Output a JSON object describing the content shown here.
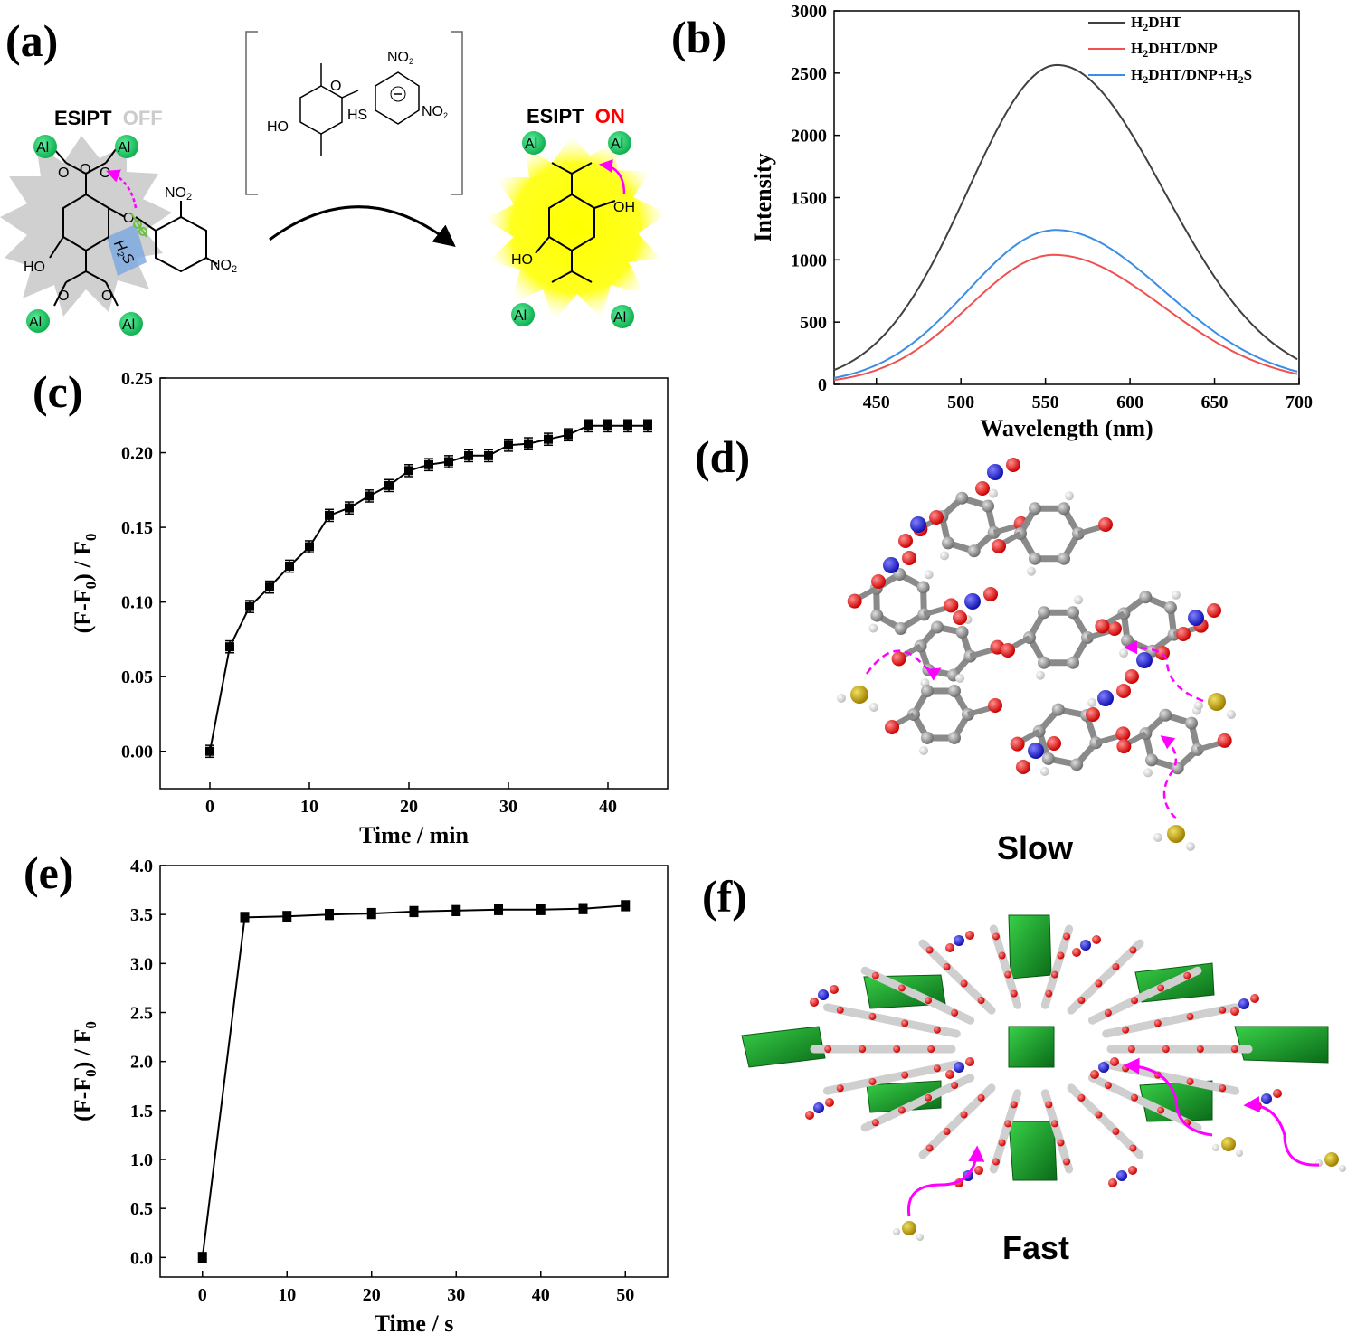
{
  "panels": {
    "a": {
      "label": "(a)",
      "esipt_off": {
        "word": "ESIPT",
        "state": "OFF",
        "state_color": "#cccccc"
      },
      "esipt_on": {
        "word": "ESIPT",
        "state": "ON",
        "state_color": "#ff0000"
      },
      "metal": "Al",
      "groups": {
        "no2": "NO",
        "no2_sub": "2",
        "ho": "HO",
        "oh": "OH",
        "o": "O",
        "hs": "HS",
        "h2s": "H",
        "h2s_sub": "2",
        "h2s_end": "S"
      }
    },
    "b": {
      "label": "(b)"
    },
    "c": {
      "label": "(c)"
    },
    "d": {
      "label": "(d)",
      "caption": "Slow"
    },
    "e": {
      "label": "(e)"
    },
    "f": {
      "label": "(f)",
      "caption": "Fast"
    }
  },
  "colors": {
    "black": "#404040",
    "red": "#f05050",
    "blue": "#3a8ee6",
    "accent_green": "#22c46a",
    "magenta": "#ff00ff",
    "mof_green": "#1a9a2a"
  },
  "chart_data": [
    {
      "id": "b",
      "type": "line",
      "xlabel": "Wavelength (nm)",
      "ylabel": "Intensity",
      "xlim": [
        425,
        700
      ],
      "ylim": [
        0,
        3000
      ],
      "xticks": [
        450,
        500,
        550,
        600,
        650,
        700
      ],
      "yticks": [
        0,
        500,
        1000,
        1500,
        2000,
        2500,
        3000
      ],
      "legend_position": "top-right",
      "series": [
        {
          "name": "H2DHT",
          "legend": {
            "a": "H",
            "sub": "2",
            "b": "DHT"
          },
          "color": "#404040",
          "peak_x": 557,
          "peak_y": 2565,
          "sigma_left": 53,
          "sigma_right": 63
        },
        {
          "name": "H2DHT/DNP",
          "legend": {
            "a": "H",
            "sub": "2",
            "b": "DHT/DNP"
          },
          "color": "#f05050",
          "peak_x": 555,
          "peak_y": 1040,
          "sigma_left": 50,
          "sigma_right": 64
        },
        {
          "name": "H2DHT/DNP+H2S",
          "legend": {
            "a": "H",
            "sub": "2",
            "b": "DHT/DNP+H",
            "sub2": "2",
            "c": "S"
          },
          "color": "#3a8ee6",
          "peak_x": 556,
          "peak_y": 1240,
          "sigma_left": 52,
          "sigma_right": 64
        }
      ]
    },
    {
      "id": "c",
      "type": "line",
      "xlabel": "Time / min",
      "ylabel": "(F-F0) / F0",
      "ylabel_parts": {
        "a": "(F-F",
        "s1": "0",
        "b": ") / F",
        "s2": "0"
      },
      "xlim": [
        -5,
        46
      ],
      "ylim": [
        -0.025,
        0.25
      ],
      "xticks": [
        0,
        10,
        20,
        30,
        40
      ],
      "yticks": [
        "0.00",
        "0.05",
        "0.10",
        "0.15",
        "0.20",
        "0.25"
      ],
      "x": [
        0,
        2,
        4,
        6,
        8,
        10,
        12,
        14,
        16,
        18,
        20,
        22,
        24,
        26,
        28,
        30,
        32,
        34,
        36,
        38,
        40,
        42,
        44
      ],
      "y": [
        0.0,
        0.07,
        0.097,
        0.11,
        0.124,
        0.137,
        0.158,
        0.163,
        0.171,
        0.178,
        0.188,
        0.192,
        0.194,
        0.198,
        0.198,
        0.205,
        0.206,
        0.209,
        0.212,
        0.218,
        0.218,
        0.218,
        0.218
      ],
      "err": 0.004
    },
    {
      "id": "e",
      "type": "line",
      "xlabel": "Time / s",
      "ylabel": "(F-F0) / F0",
      "ylabel_parts": {
        "a": "(F-F",
        "s1": "0",
        "b": ") / F",
        "s2": "0"
      },
      "xlim": [
        -5,
        55
      ],
      "ylim": [
        -0.2,
        4.0
      ],
      "xticks": [
        0,
        10,
        20,
        30,
        40,
        50
      ],
      "yticks": [
        "0.0",
        "0.5",
        "1.0",
        "1.5",
        "2.0",
        "2.5",
        "3.0",
        "3.5",
        "4.0"
      ],
      "x": [
        0,
        5,
        10,
        15,
        20,
        25,
        30,
        35,
        40,
        45,
        50
      ],
      "y": [
        0.0,
        3.47,
        3.48,
        3.5,
        3.51,
        3.53,
        3.54,
        3.55,
        3.55,
        3.56,
        3.59
      ],
      "err": 0.05
    }
  ]
}
